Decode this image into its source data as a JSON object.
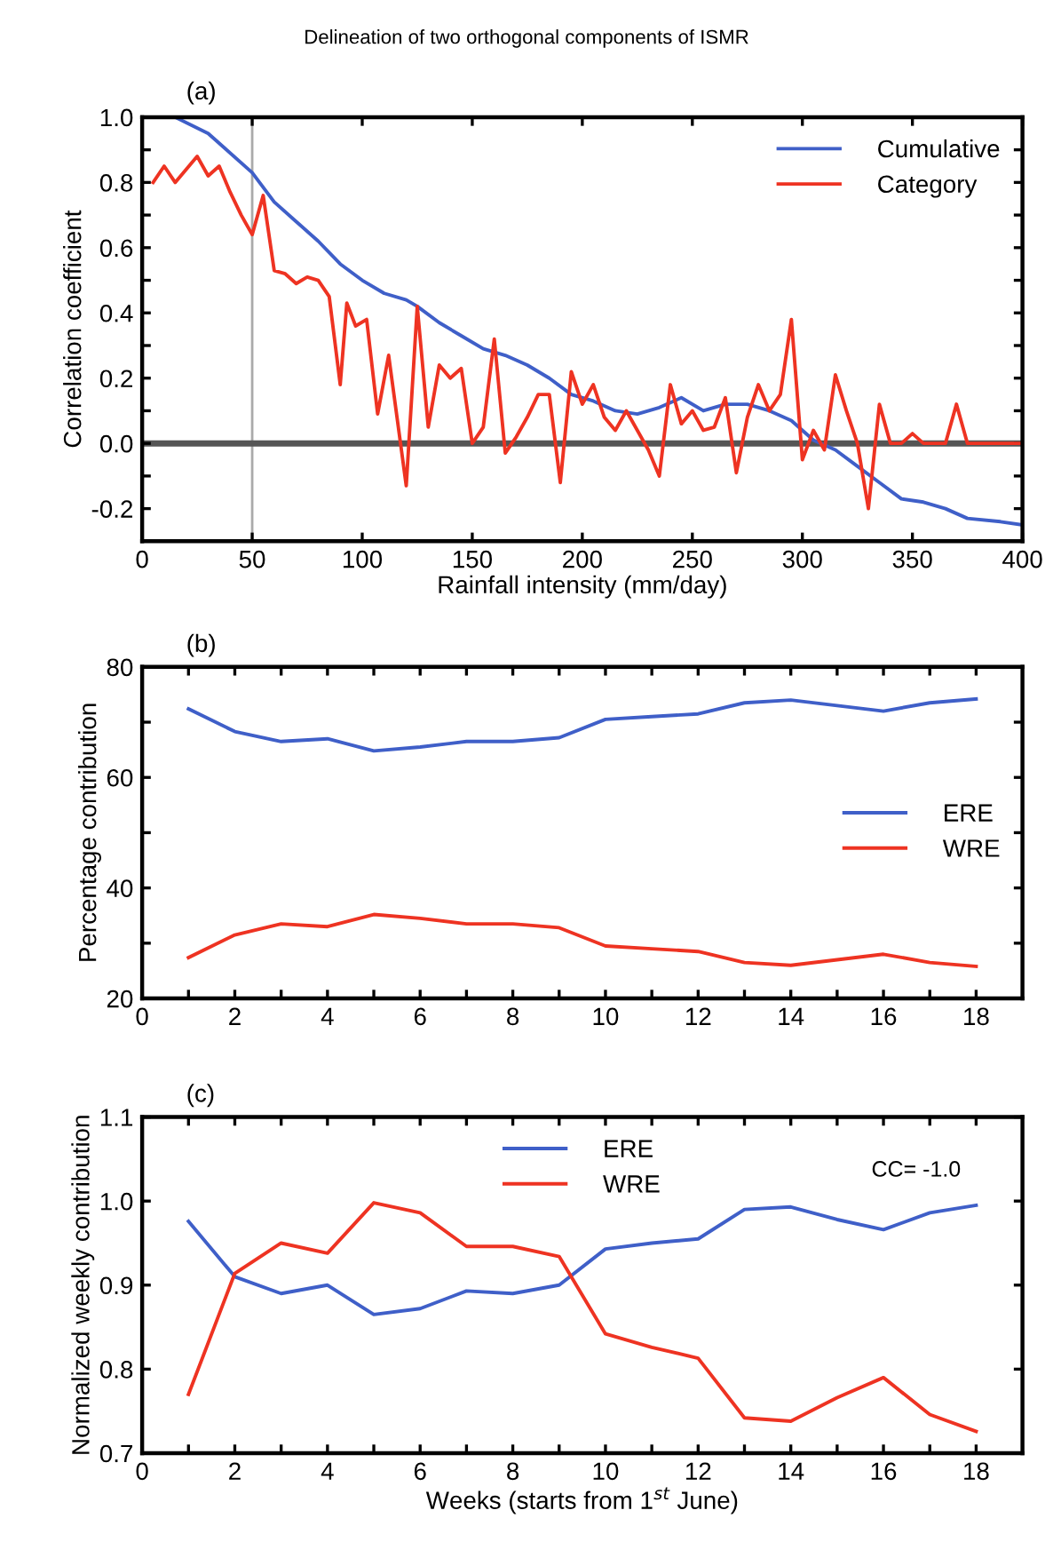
{
  "chart_data": [
    {
      "type": "line",
      "title": "Delineation of two orthogonal components of ISMR",
      "annotations": [
        "(a)"
      ],
      "xlabel": "Rainfall intensity (mm/day)",
      "ylabel": "Correlation coefficient",
      "xlim": [
        0,
        400
      ],
      "xticks": [
        0,
        50,
        100,
        150,
        200,
        250,
        300,
        350,
        400
      ],
      "ylim": [
        -0.3,
        1.0
      ],
      "yticks": [
        {
          "value": -0.3,
          "label": null
        },
        -0.2,
        {
          "value": -0.1,
          "label": null
        },
        {
          "value": 0,
          "label": "0.0"
        },
        {
          "value": 0.1,
          "label": null
        },
        0.2,
        {
          "value": 0.3,
          "label": null
        },
        0.4,
        {
          "value": 0.5,
          "label": null
        },
        0.6,
        {
          "value": 0.7,
          "label": null
        },
        0.8,
        {
          "value": 0.9,
          "label": null
        },
        {
          "value": 1,
          "label": "1.0"
        }
      ],
      "legend": "top right",
      "grid": false,
      "ref_lines": [
        {
          "axis": "y",
          "value": 0,
          "color": "#555555"
        },
        {
          "axis": "x",
          "value": 50,
          "color": "#aaaaaa"
        }
      ],
      "series": [
        {
          "name": "Cumulative",
          "color": "#3f5fc8",
          "x": [
            15,
            30,
            50,
            60,
            70,
            80,
            90,
            100,
            110,
            120,
            125,
            135,
            145,
            155,
            165,
            175,
            185,
            195,
            205,
            215,
            225,
            235,
            245,
            255,
            265,
            275,
            285,
            295,
            305,
            315,
            325,
            335,
            345,
            355,
            365,
            375,
            390,
            400
          ],
          "values": [
            1.0,
            0.95,
            0.83,
            0.74,
            0.68,
            0.62,
            0.55,
            0.5,
            0.46,
            0.44,
            0.42,
            0.37,
            0.33,
            0.29,
            0.27,
            0.24,
            0.2,
            0.15,
            0.13,
            0.1,
            0.09,
            0.11,
            0.14,
            0.1,
            0.12,
            0.12,
            0.1,
            0.07,
            0.01,
            -0.02,
            -0.07,
            -0.12,
            -0.17,
            -0.18,
            -0.2,
            -0.23,
            -0.24,
            -0.25
          ]
        },
        {
          "name": "Category",
          "color": "#ee3322",
          "x": [
            5,
            10,
            15,
            25,
            30,
            35,
            40,
            45,
            50,
            55,
            60,
            65,
            70,
            75,
            80,
            85,
            90,
            93,
            97,
            102,
            107,
            112,
            120,
            125,
            130,
            135,
            140,
            145,
            150,
            155,
            160,
            165,
            170,
            175,
            180,
            185,
            190,
            195,
            200,
            205,
            210,
            215,
            220,
            225,
            230,
            235,
            240,
            245,
            250,
            255,
            260,
            265,
            270,
            275,
            280,
            285,
            290,
            295,
            300,
            305,
            310,
            315,
            320,
            325,
            330,
            335,
            340,
            345,
            350,
            355,
            360,
            365,
            370,
            375,
            400
          ],
          "values": [
            0.8,
            0.85,
            0.8,
            0.88,
            0.82,
            0.85,
            0.77,
            0.7,
            0.64,
            0.76,
            0.53,
            0.52,
            0.49,
            0.51,
            0.5,
            0.45,
            0.18,
            0.43,
            0.36,
            0.38,
            0.09,
            0.27,
            -0.13,
            0.42,
            0.05,
            0.24,
            0.2,
            0.23,
            0.0,
            0.05,
            0.32,
            -0.03,
            0.02,
            0.08,
            0.15,
            0.15,
            -0.12,
            0.22,
            0.12,
            0.18,
            0.08,
            0.04,
            0.1,
            0.04,
            -0.02,
            -0.1,
            0.18,
            0.06,
            0.1,
            0.04,
            0.05,
            0.14,
            -0.09,
            0.08,
            0.18,
            0.1,
            0.15,
            0.38,
            -0.05,
            0.04,
            -0.02,
            0.21,
            0.1,
            0.0,
            -0.2,
            0.12,
            0.0,
            0.0,
            0.03,
            0.0,
            0.0,
            0.0,
            0.12,
            0.0,
            0.0
          ]
        }
      ]
    },
    {
      "type": "line",
      "annotations": [
        "(b)"
      ],
      "ylabel": "Percentage contribution",
      "x": [
        1,
        2,
        3,
        4,
        5,
        6,
        7,
        8,
        9,
        10,
        11,
        12,
        13,
        14,
        15,
        16,
        17,
        18
      ],
      "xlim": [
        0,
        19
      ],
      "xticks": [
        0,
        {
          "value": 1,
          "label": null
        },
        2,
        {
          "value": 3,
          "label": null
        },
        4,
        {
          "value": 5,
          "label": null
        },
        6,
        {
          "value": 7,
          "label": null
        },
        8,
        {
          "value": 9,
          "label": null
        },
        10,
        {
          "value": 11,
          "label": null
        },
        12,
        {
          "value": 13,
          "label": null
        },
        14,
        {
          "value": 15,
          "label": null
        },
        16,
        {
          "value": 17,
          "label": null
        },
        18
      ],
      "ylim": [
        20,
        80
      ],
      "yticks": [
        20,
        {
          "value": 30,
          "label": null
        },
        40,
        {
          "value": 50,
          "label": null
        },
        60,
        {
          "value": 70,
          "label": null
        },
        80
      ],
      "legend": "right",
      "grid": false,
      "series": [
        {
          "name": "ERE",
          "color": "#3f5fc8",
          "values": [
            72.4,
            68.3,
            66.5,
            67,
            64.8,
            65.5,
            66.5,
            66.5,
            67.2,
            70.5,
            71,
            71.5,
            73.5,
            74,
            73,
            72,
            73.5,
            74.2
          ]
        },
        {
          "name": "WRE",
          "color": "#ee3322",
          "values": [
            27.4,
            31.5,
            33.5,
            33,
            35.2,
            34.5,
            33.5,
            33.5,
            32.8,
            29.5,
            29,
            28.5,
            26.5,
            26,
            27,
            28,
            26.5,
            25.8
          ]
        }
      ]
    },
    {
      "type": "line",
      "annotations": [
        "(c)",
        {
          "text": "CC= -1.0"
        }
      ],
      "xlabel": "Weeks (starts from 1$^{st}$ June)",
      "ylabel": "Normalized weekly contribution",
      "x": [
        1,
        2,
        3,
        4,
        5,
        6,
        7,
        8,
        9,
        10,
        11,
        12,
        13,
        14,
        15,
        16,
        17,
        18
      ],
      "xlim": [
        0,
        19
      ],
      "xticks": [
        0,
        {
          "value": 1,
          "label": null
        },
        2,
        {
          "value": 3,
          "label": null
        },
        4,
        {
          "value": 5,
          "label": null
        },
        6,
        {
          "value": 7,
          "label": null
        },
        8,
        {
          "value": 9,
          "label": null
        },
        10,
        {
          "value": 11,
          "label": null
        },
        12,
        {
          "value": 13,
          "label": null
        },
        14,
        {
          "value": 15,
          "label": null
        },
        16,
        {
          "value": 17,
          "label": null
        },
        18
      ],
      "ylim": [
        0.7,
        1.1
      ],
      "yticks": [
        0.7,
        0.8,
        0.9,
        {
          "value": 1,
          "label": "1.0"
        },
        1.1
      ],
      "legend": "top",
      "grid": false,
      "series": [
        {
          "name": "ERE",
          "color": "#3f5fc8",
          "values": [
            0.976,
            0.91,
            0.89,
            0.9,
            0.865,
            0.872,
            0.893,
            0.89,
            0.9,
            0.943,
            0.95,
            0.955,
            0.99,
            0.993,
            0.978,
            0.966,
            0.986,
            0.995
          ]
        },
        {
          "name": "WRE",
          "color": "#ee3322",
          "values": [
            0.77,
            0.914,
            0.95,
            0.938,
            0.998,
            0.986,
            0.946,
            0.946,
            0.934,
            0.842,
            0.826,
            0.813,
            0.742,
            0.738,
            0.766,
            0.79,
            0.746,
            0.726
          ]
        }
      ]
    }
  ]
}
